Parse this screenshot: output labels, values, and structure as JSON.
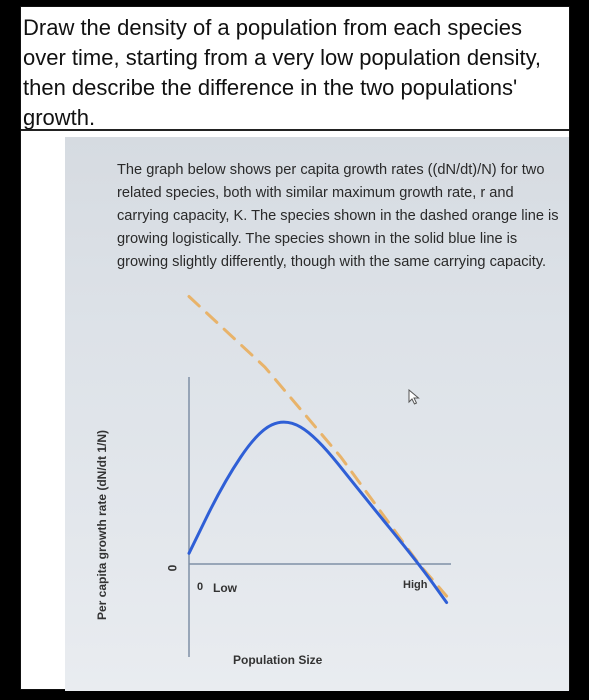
{
  "question": {
    "text": "Draw the density of a population from each species over time, starting from a very low population density, then describe the difference in the two populations' growth."
  },
  "passage": {
    "text": "The graph below shows per capita growth rates ((dN/dt)/N) for two related species, both with similar maximum growth rate, r and carrying capacity, K. The species shown in the dashed orange line is growing logistically. The species shown in the solid blue line is growing slightly differently, though with the same carrying capacity."
  },
  "icons": {
    "cursor": "cursor-arrow-icon"
  },
  "chart_data": {
    "type": "line",
    "ylabel": "Per capita growth rate (dN/dt 1/N)",
    "xlabel": "Population Size",
    "y_tick": "0",
    "x_origin_label": "0",
    "x_tick_low": "Low",
    "x_tick_high": "High",
    "series": [
      {
        "style": "dashed",
        "color": "#e8b36a",
        "points": [
          [
            0.0,
            1.25
          ],
          [
            0.33,
            0.92
          ],
          [
            0.66,
            0.5
          ],
          [
            1.0,
            0.0
          ],
          [
            1.12,
            -0.15
          ]
        ]
      },
      {
        "style": "solid",
        "color": "#2f5fd6",
        "points": [
          [
            0.0,
            0.05
          ],
          [
            0.15,
            0.38
          ],
          [
            0.3,
            0.62
          ],
          [
            0.42,
            0.68
          ],
          [
            0.55,
            0.6
          ],
          [
            0.75,
            0.33
          ],
          [
            1.0,
            0.0
          ],
          [
            1.12,
            -0.18
          ]
        ]
      }
    ],
    "colors": {
      "axis": "#7f8fa6",
      "dashed": "#e8b36a",
      "solid": "#2f5fd6"
    }
  }
}
